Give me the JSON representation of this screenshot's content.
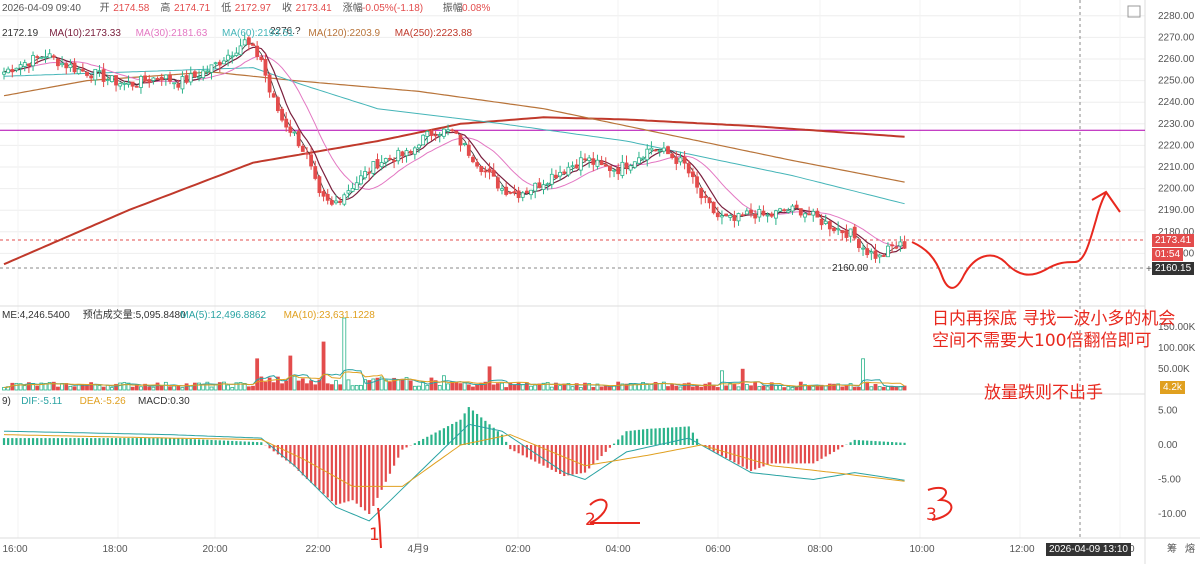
{
  "header": {
    "datetime": "2026-04-09 09:40",
    "open_label": "开",
    "open_value": "2174.58",
    "high_label": "高",
    "high_value": "2174.71",
    "low_label": "低",
    "low_value": "2172.97",
    "close_label": "收",
    "close_value": "2173.41",
    "change_label": "涨幅",
    "change_value": "-0.05%(-1.18)",
    "amp_label": "振幅",
    "amp_value": "0.08%"
  },
  "ma_legend": [
    {
      "text": "2172.19",
      "color": "#333333"
    },
    {
      "text": "MA(10):2173.33",
      "color": "#7a1f3d"
    },
    {
      "text": "MA(30):2181.63",
      "color": "#e377c2"
    },
    {
      "text": "MA(60):2193.51",
      "color": "#45b5b8"
    },
    {
      "text": "MA(120):2203.9",
      "color": "#b8743a"
    },
    {
      "text": "MA(250):2223.88",
      "color": "#c0392b"
    }
  ],
  "vol_legend": [
    {
      "text": "ME:4,246.5400",
      "color": "#333333"
    },
    {
      "text": "预估成交量:5,095.8480",
      "color": "#333333"
    },
    {
      "text": "MA(5):12,496.8862",
      "color": "#2aa3a3"
    },
    {
      "text": "MA(10):23,631.1228",
      "color": "#e0a020"
    }
  ],
  "macd_legend": [
    {
      "text": "9)",
      "color": "#333333"
    },
    {
      "text": "DIF:-5.11",
      "color": "#2aa3a3"
    },
    {
      "text": "DEA:-5.26",
      "color": "#e0a020"
    },
    {
      "text": "MACD:0.30",
      "color": "#333333"
    }
  ],
  "price_axis_ticks": [
    "2280.00",
    "2270.00",
    "2260.00",
    "2250.00",
    "2240.00",
    "2230.00",
    "2220.00",
    "2210.00",
    "2200.00",
    "2190.00",
    "2180.00",
    "2170.00"
  ],
  "vol_axis_ticks": [
    "150.00K",
    "100.00K",
    "50.00K"
  ],
  "macd_axis_ticks": [
    "5.00",
    "0.00",
    "-5.00",
    "-10.00"
  ],
  "time_axis": [
    "16:00",
    "18:00",
    "20:00",
    "22:00",
    "4月9",
    "02:00",
    "04:00",
    "06:00",
    "08:00",
    "10:00",
    "12:00",
    "14:00"
  ],
  "price_tags": {
    "last": "2173.41",
    "countdown": "01:54",
    "cross": "2160.15",
    "vol_tag": "4.2k"
  },
  "crosshair_time": "2026-04-09 13:10",
  "low_marker": "2160.00",
  "high_marker": "2276.?",
  "corner_labels": [
    "筹",
    "熔"
  ],
  "annotations": {
    "line1": "日内再探底 寻找一波小多的机会",
    "line2": "空间不需要大100倍翻倍即可",
    "line3": "放量跌则不出手",
    "num1": "1",
    "num2": "2",
    "num3": "3"
  },
  "colors": {
    "up": "#2bb38a",
    "down": "#e34c4c",
    "annotation": "#e8281e",
    "grid": "#eeeeee",
    "level": "#b000b0"
  },
  "chart_data": {
    "type": "candlestick",
    "title": "Price chart with MA, Volume and MACD",
    "y_range": [
      2160,
      2285
    ],
    "horizontal_level": 2227,
    "close_series_anchors": [
      [
        0,
        2254
      ],
      [
        3,
        2257
      ],
      [
        6,
        2259
      ],
      [
        10,
        2262
      ],
      [
        14,
        2258
      ],
      [
        18,
        2255
      ],
      [
        22,
        2253
      ],
      [
        26,
        2250
      ],
      [
        30,
        2248
      ],
      [
        34,
        2250
      ],
      [
        38,
        2252
      ],
      [
        42,
        2249
      ],
      [
        46,
        2252
      ],
      [
        50,
        2256
      ],
      [
        54,
        2262
      ],
      [
        58,
        2268
      ],
      [
        62,
        2260
      ],
      [
        64,
        2245
      ],
      [
        67,
        2232
      ],
      [
        70,
        2225
      ],
      [
        73,
        2215
      ],
      [
        76,
        2196
      ],
      [
        79,
        2192
      ],
      [
        82,
        2198
      ],
      [
        86,
        2205
      ],
      [
        90,
        2212
      ],
      [
        94,
        2215
      ],
      [
        98,
        2216
      ],
      [
        100,
        2222
      ],
      [
        104,
        2227
      ],
      [
        108,
        2226
      ],
      [
        112,
        2217
      ],
      [
        116,
        2208
      ],
      [
        120,
        2200
      ],
      [
        124,
        2198
      ],
      [
        128,
        2201
      ],
      [
        132,
        2206
      ],
      [
        136,
        2210
      ],
      [
        140,
        2214
      ],
      [
        144,
        2210
      ],
      [
        148,
        2209
      ],
      [
        152,
        2214
      ],
      [
        156,
        2219
      ],
      [
        160,
        2216
      ],
      [
        164,
        2211
      ],
      [
        168,
        2196
      ],
      [
        172,
        2187
      ],
      [
        176,
        2185
      ],
      [
        180,
        2189
      ],
      [
        184,
        2187
      ],
      [
        188,
        2190
      ],
      [
        192,
        2190
      ],
      [
        196,
        2186
      ],
      [
        200,
        2182
      ],
      [
        204,
        2179
      ],
      [
        208,
        2171
      ],
      [
        211,
        2168
      ],
      [
        214,
        2173
      ],
      [
        217,
        2174
      ]
    ],
    "ma250_anchors": [
      [
        0,
        2165
      ],
      [
        30,
        2190
      ],
      [
        60,
        2212
      ],
      [
        90,
        2222
      ],
      [
        110,
        2230
      ],
      [
        130,
        2233
      ],
      [
        150,
        2232
      ],
      [
        180,
        2229
      ],
      [
        217,
        2224
      ]
    ],
    "ma120_anchors": [
      [
        0,
        2243
      ],
      [
        20,
        2250
      ],
      [
        50,
        2254
      ],
      [
        70,
        2250
      ],
      [
        100,
        2245
      ],
      [
        130,
        2237
      ],
      [
        160,
        2225
      ],
      [
        190,
        2213
      ],
      [
        217,
        2203
      ]
    ],
    "ma60_anchors": [
      [
        0,
        2252
      ],
      [
        30,
        2254
      ],
      [
        60,
        2256
      ],
      [
        72,
        2248
      ],
      [
        90,
        2237
      ],
      [
        120,
        2230
      ],
      [
        150,
        2222
      ],
      [
        190,
        2206
      ],
      [
        217,
        2193
      ]
    ],
    "volume_spikes": [
      [
        82,
        180
      ],
      [
        77,
        120
      ],
      [
        69,
        85
      ],
      [
        61,
        78
      ],
      [
        117,
        58
      ],
      [
        178,
        52
      ],
      [
        207,
        78
      ],
      [
        173,
        48
      ]
    ],
    "macd_dif_anchors": [
      [
        0,
        2
      ],
      [
        40,
        1.5
      ],
      [
        62,
        1
      ],
      [
        70,
        -3
      ],
      [
        80,
        -9
      ],
      [
        88,
        -11
      ],
      [
        100,
        -4
      ],
      [
        112,
        3
      ],
      [
        120,
        2
      ],
      [
        135,
        -4
      ],
      [
        140,
        -5
      ],
      [
        150,
        -1
      ],
      [
        165,
        1
      ],
      [
        180,
        -4
      ],
      [
        195,
        -5
      ],
      [
        205,
        -4
      ],
      [
        217,
        -5.1
      ]
    ],
    "macd_dea_anchors": [
      [
        0,
        1.5
      ],
      [
        40,
        1
      ],
      [
        62,
        0.8
      ],
      [
        72,
        -2
      ],
      [
        84,
        -6
      ],
      [
        96,
        -6
      ],
      [
        110,
        0
      ],
      [
        122,
        1.5
      ],
      [
        140,
        -3
      ],
      [
        155,
        -1.5
      ],
      [
        168,
        0
      ],
      [
        185,
        -3
      ],
      [
        200,
        -4
      ],
      [
        217,
        -5.26
      ]
    ],
    "forecast_path": "dip then rebound (hand-drawn)"
  }
}
